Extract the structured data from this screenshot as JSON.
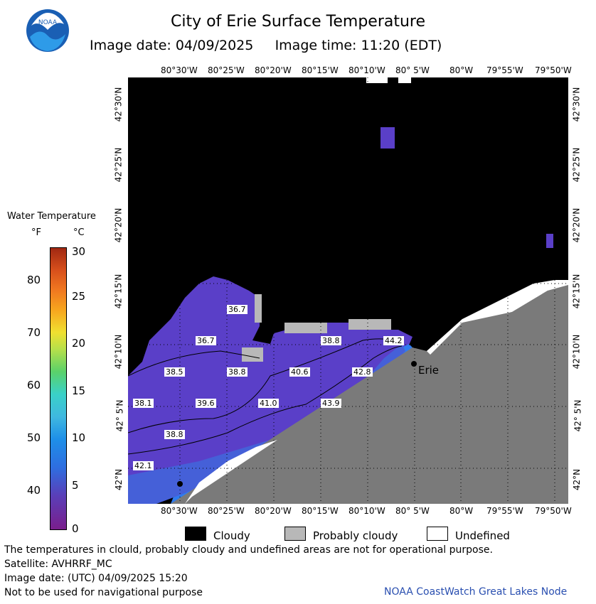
{
  "header": {
    "title": "City of Erie Surface Temperature",
    "date_label": "Image date:",
    "date": "04/09/2025",
    "time_label": "Image time:",
    "time": "11:20 (EDT)",
    "logo_text": "NOAA"
  },
  "map": {
    "lon_ticks": [
      "80°30'W",
      "80°25'W",
      "80°20'W",
      "80°15'W",
      "80°10'W",
      "80° 5'W",
      "80°W",
      "79°55'W",
      "79°50'W"
    ],
    "lat_ticks": [
      "42°30'N",
      "42°25'N",
      "42°20'N",
      "42°15'N",
      "42°10'N",
      "42° 5'N",
      "42°N"
    ],
    "city": "Erie",
    "isotherm_labels": [
      "36.7",
      "36.7",
      "38.8",
      "44.2",
      "38.5",
      "38.8",
      "40.6",
      "42.8",
      "38.1",
      "39.6",
      "41.0",
      "43.9",
      "38.8",
      "42.1"
    ],
    "colors": {
      "land": "#7a7a7a",
      "cloud": "#000000",
      "probably_cloudy": "#b8b8b8",
      "undefined": "#ffffff",
      "water_cold": "#5a3fc8",
      "water_warm": "#2f7cf0"
    }
  },
  "legend": {
    "title": "Water Temperature",
    "unit_f": "°F",
    "unit_c": "°C",
    "f_ticks": [
      "80",
      "70",
      "60",
      "50",
      "40"
    ],
    "c_ticks": [
      "30",
      "25",
      "20",
      "15",
      "10",
      "5",
      "0"
    ],
    "cloudy": "Cloudy",
    "probably_cloudy": "Probably cloudy",
    "undefined": "Undefined"
  },
  "footer": {
    "line1": "The temperatures in clould, probably cloudy and undefined areas are not for operational purpose.",
    "line2": "Satellite: AVHRRF_MC",
    "line3": "Image date: (UTC) 04/09/2025  15:20",
    "line4": "Not to be used for navigational purpose",
    "credit": "NOAA CoastWatch Great Lakes Node"
  }
}
